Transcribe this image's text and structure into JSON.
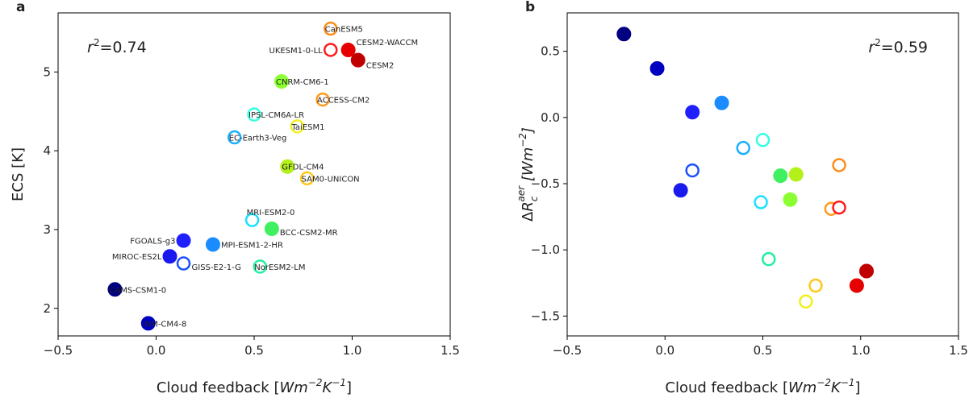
{
  "chart_data": [
    {
      "type": "scatter",
      "panel": "a",
      "xlabel": "Cloud feedback [Wm⁻²K⁻¹]",
      "ylabel": "ECS [K]",
      "annotation": "r²=0.74",
      "xlim": [
        -0.5,
        1.5
      ],
      "ylim": [
        1.65,
        5.75
      ],
      "xticks": [
        -0.5,
        0.0,
        0.5,
        1.0,
        1.5
      ],
      "yticks": [
        2,
        3,
        4,
        5
      ],
      "point_labels": true,
      "points": [
        {
          "model": "CanESM5",
          "x": 0.89,
          "y": 5.55,
          "color": "#ff8c1a",
          "filled": false
        },
        {
          "model": "UKESM1-0-LL",
          "x": 0.89,
          "y": 5.28,
          "color": "#ff1a1a",
          "filled": false
        },
        {
          "model": "CESM2-WACCM",
          "x": 0.98,
          "y": 5.28,
          "color": "#e60000",
          "filled": true
        },
        {
          "model": "CESM2",
          "x": 1.03,
          "y": 5.15,
          "color": "#c00000",
          "filled": true
        },
        {
          "model": "CNRM-CM6-1",
          "x": 0.64,
          "y": 4.88,
          "color": "#8cff33",
          "filled": true
        },
        {
          "model": "ACCESS-CM2",
          "x": 0.85,
          "y": 4.65,
          "color": "#ff9a1a",
          "filled": false
        },
        {
          "model": "IPSL-CM6A-LR",
          "x": 0.5,
          "y": 4.46,
          "color": "#33ffe0",
          "filled": false
        },
        {
          "model": "TaiESM1",
          "x": 0.72,
          "y": 4.31,
          "color": "#f0f020",
          "filled": false
        },
        {
          "model": "EC-Earth3-Veg",
          "x": 0.4,
          "y": 4.17,
          "color": "#1ab0ff",
          "filled": false
        },
        {
          "model": "GFDL-CM4",
          "x": 0.67,
          "y": 3.8,
          "color": "#b4f01a",
          "filled": true
        },
        {
          "model": "SAM0-UNICON",
          "x": 0.77,
          "y": 3.65,
          "color": "#ffc81a",
          "filled": false
        },
        {
          "model": "MRI-ESM2-0",
          "x": 0.49,
          "y": 3.12,
          "color": "#1ae0ff",
          "filled": false
        },
        {
          "model": "BCC-CSM2-MR",
          "x": 0.59,
          "y": 3.01,
          "color": "#40f060",
          "filled": true
        },
        {
          "model": "FGOALS-g3",
          "x": 0.14,
          "y": 2.86,
          "color": "#2020ff",
          "filled": true
        },
        {
          "model": "MPI-ESM1-2-HR",
          "x": 0.29,
          "y": 2.81,
          "color": "#1a8cff",
          "filled": true
        },
        {
          "model": "MIROC-ES2L",
          "x": 0.07,
          "y": 2.66,
          "color": "#1a1aee",
          "filled": true
        },
        {
          "model": "GISS-E2-1-G",
          "x": 0.14,
          "y": 2.57,
          "color": "#1a50ff",
          "filled": false
        },
        {
          "model": "NorESM2-LM",
          "x": 0.53,
          "y": 2.53,
          "color": "#20f0a0",
          "filled": false
        },
        {
          "model": "CAMS-CSM1-0",
          "x": -0.21,
          "y": 2.24,
          "color": "#000080",
          "filled": true
        },
        {
          "model": "INM-CM4-8",
          "x": -0.04,
          "y": 1.81,
          "color": "#0000c0",
          "filled": true
        }
      ]
    },
    {
      "type": "scatter",
      "panel": "b",
      "xlabel": "Cloud feedback [Wm⁻²K⁻¹]",
      "ylabel": "ΔR_c^aer [Wm⁻²]",
      "annotation": "r²=0.59",
      "xlim": [
        -0.5,
        1.5
      ],
      "ylim": [
        -1.65,
        0.79
      ],
      "xticks": [
        -0.5,
        0.0,
        0.5,
        1.0,
        1.5
      ],
      "yticks": [
        -1.5,
        -1.0,
        -0.5,
        0.0,
        0.5
      ],
      "point_labels": false,
      "points": [
        {
          "model": "CAMS-CSM1-0",
          "x": -0.21,
          "y": 0.63,
          "color": "#000080",
          "filled": true
        },
        {
          "model": "INM-CM4-8",
          "x": -0.04,
          "y": 0.37,
          "color": "#0000c0",
          "filled": true
        },
        {
          "model": "FGOALS-g3",
          "x": 0.14,
          "y": 0.04,
          "color": "#2020ff",
          "filled": true
        },
        {
          "model": "MPI-ESM1-2-HR",
          "x": 0.29,
          "y": 0.11,
          "color": "#1a8cff",
          "filled": true
        },
        {
          "model": "GISS-E2-1-G",
          "x": 0.14,
          "y": -0.4,
          "color": "#1a50ff",
          "filled": false
        },
        {
          "model": "MIROC-ES2L",
          "x": 0.08,
          "y": -0.55,
          "color": "#1a1aee",
          "filled": true
        },
        {
          "model": "EC-Earth3-Veg",
          "x": 0.4,
          "y": -0.23,
          "color": "#1ab0ff",
          "filled": false
        },
        {
          "model": "IPSL-CM6A-LR",
          "x": 0.5,
          "y": -0.17,
          "color": "#33ffe0",
          "filled": false
        },
        {
          "model": "MRI-ESM2-0",
          "x": 0.49,
          "y": -0.64,
          "color": "#1ae0ff",
          "filled": false
        },
        {
          "model": "BCC-CSM2-MR",
          "x": 0.59,
          "y": -0.44,
          "color": "#40f060",
          "filled": true
        },
        {
          "model": "GFDL-CM4",
          "x": 0.67,
          "y": -0.43,
          "color": "#b4f01a",
          "filled": true
        },
        {
          "model": "CNRM-CM6-1",
          "x": 0.64,
          "y": -0.62,
          "color": "#8cff33",
          "filled": true
        },
        {
          "model": "NorESM2-LM",
          "x": 0.53,
          "y": -1.07,
          "color": "#20f0a0",
          "filled": false
        },
        {
          "model": "CanESM5",
          "x": 0.89,
          "y": -0.36,
          "color": "#ff8c1a",
          "filled": false
        },
        {
          "model": "ACCESS-CM2",
          "x": 0.85,
          "y": -0.69,
          "color": "#ff9a1a",
          "filled": false
        },
        {
          "model": "UKESM1-0-LL",
          "x": 0.89,
          "y": -0.68,
          "color": "#ff1a1a",
          "filled": false
        },
        {
          "model": "SAM0-UNICON",
          "x": 0.77,
          "y": -1.27,
          "color": "#ffc81a",
          "filled": false
        },
        {
          "model": "TaiESM1",
          "x": 0.72,
          "y": -1.39,
          "color": "#f0f020",
          "filled": false
        },
        {
          "model": "CESM2-WACCM",
          "x": 0.98,
          "y": -1.27,
          "color": "#e60000",
          "filled": true
        },
        {
          "model": "CESM2",
          "x": 1.03,
          "y": -1.16,
          "color": "#c00000",
          "filled": true
        }
      ]
    }
  ]
}
